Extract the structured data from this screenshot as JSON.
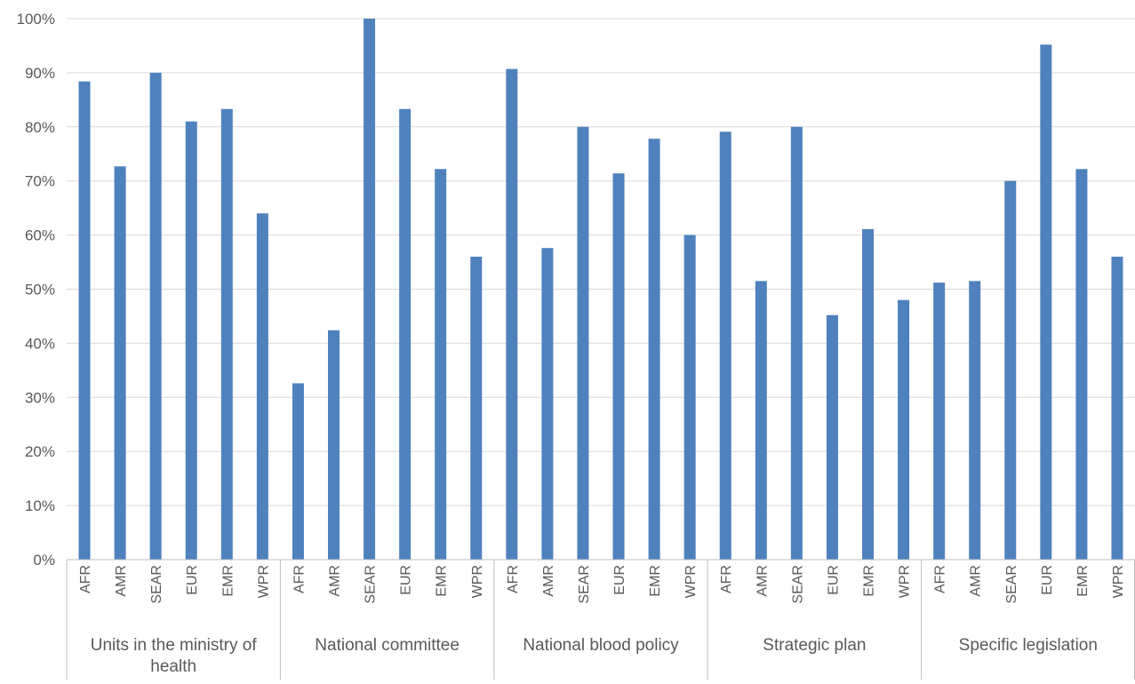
{
  "chart_data": {
    "type": "bar",
    "groups": [
      {
        "label": "Units in the ministry of health",
        "categories": [
          "AFR",
          "AMR",
          "SEAR",
          "EUR",
          "EMR",
          "WPR"
        ],
        "values": [
          88.4,
          72.7,
          90.0,
          81.0,
          83.3,
          64.0
        ]
      },
      {
        "label": "National committee",
        "categories": [
          "AFR",
          "AMR",
          "SEAR",
          "EUR",
          "EMR",
          "WPR"
        ],
        "values": [
          32.6,
          42.4,
          100.0,
          83.3,
          72.2,
          56.0
        ]
      },
      {
        "label": "National blood policy",
        "categories": [
          "AFR",
          "AMR",
          "SEAR",
          "EUR",
          "EMR",
          "WPR"
        ],
        "values": [
          90.7,
          57.6,
          80.0,
          71.4,
          77.8,
          60.0
        ]
      },
      {
        "label": "Strategic plan",
        "categories": [
          "AFR",
          "AMR",
          "SEAR",
          "EUR",
          "EMR",
          "WPR"
        ],
        "values": [
          79.1,
          51.5,
          80.0,
          45.2,
          61.1,
          48.0
        ]
      },
      {
        "label": "Specific legislation",
        "categories": [
          "AFR",
          "AMR",
          "SEAR",
          "EUR",
          "EMR",
          "WPR"
        ],
        "values": [
          51.2,
          51.5,
          70.0,
          95.2,
          72.2,
          56.0
        ]
      }
    ],
    "ylim": [
      0,
      100
    ],
    "y_ticks": [
      "0%",
      "10%",
      "20%",
      "30%",
      "40%",
      "50%",
      "60%",
      "70%",
      "80%",
      "90%",
      "100%"
    ],
    "grid": true,
    "bar_color": "#4F81BD",
    "grid_color": "#D9D9D9",
    "axis_color": "#BFBFBF"
  }
}
